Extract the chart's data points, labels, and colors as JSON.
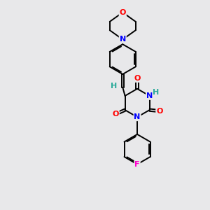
{
  "bg_color": "#e8e8ea",
  "bond_color": "#000000",
  "atom_colors": {
    "O": "#ff0000",
    "N": "#0000ff",
    "F": "#ff00cc",
    "H": "#2aaa99",
    "C": "#000000"
  },
  "bond_width": 1.4,
  "dbo": 0.055,
  "font_size_atom": 8,
  "fig_size": [
    3.0,
    3.0
  ],
  "dpi": 100,
  "xlim": [
    0,
    10
  ],
  "ylim": [
    0,
    10
  ]
}
